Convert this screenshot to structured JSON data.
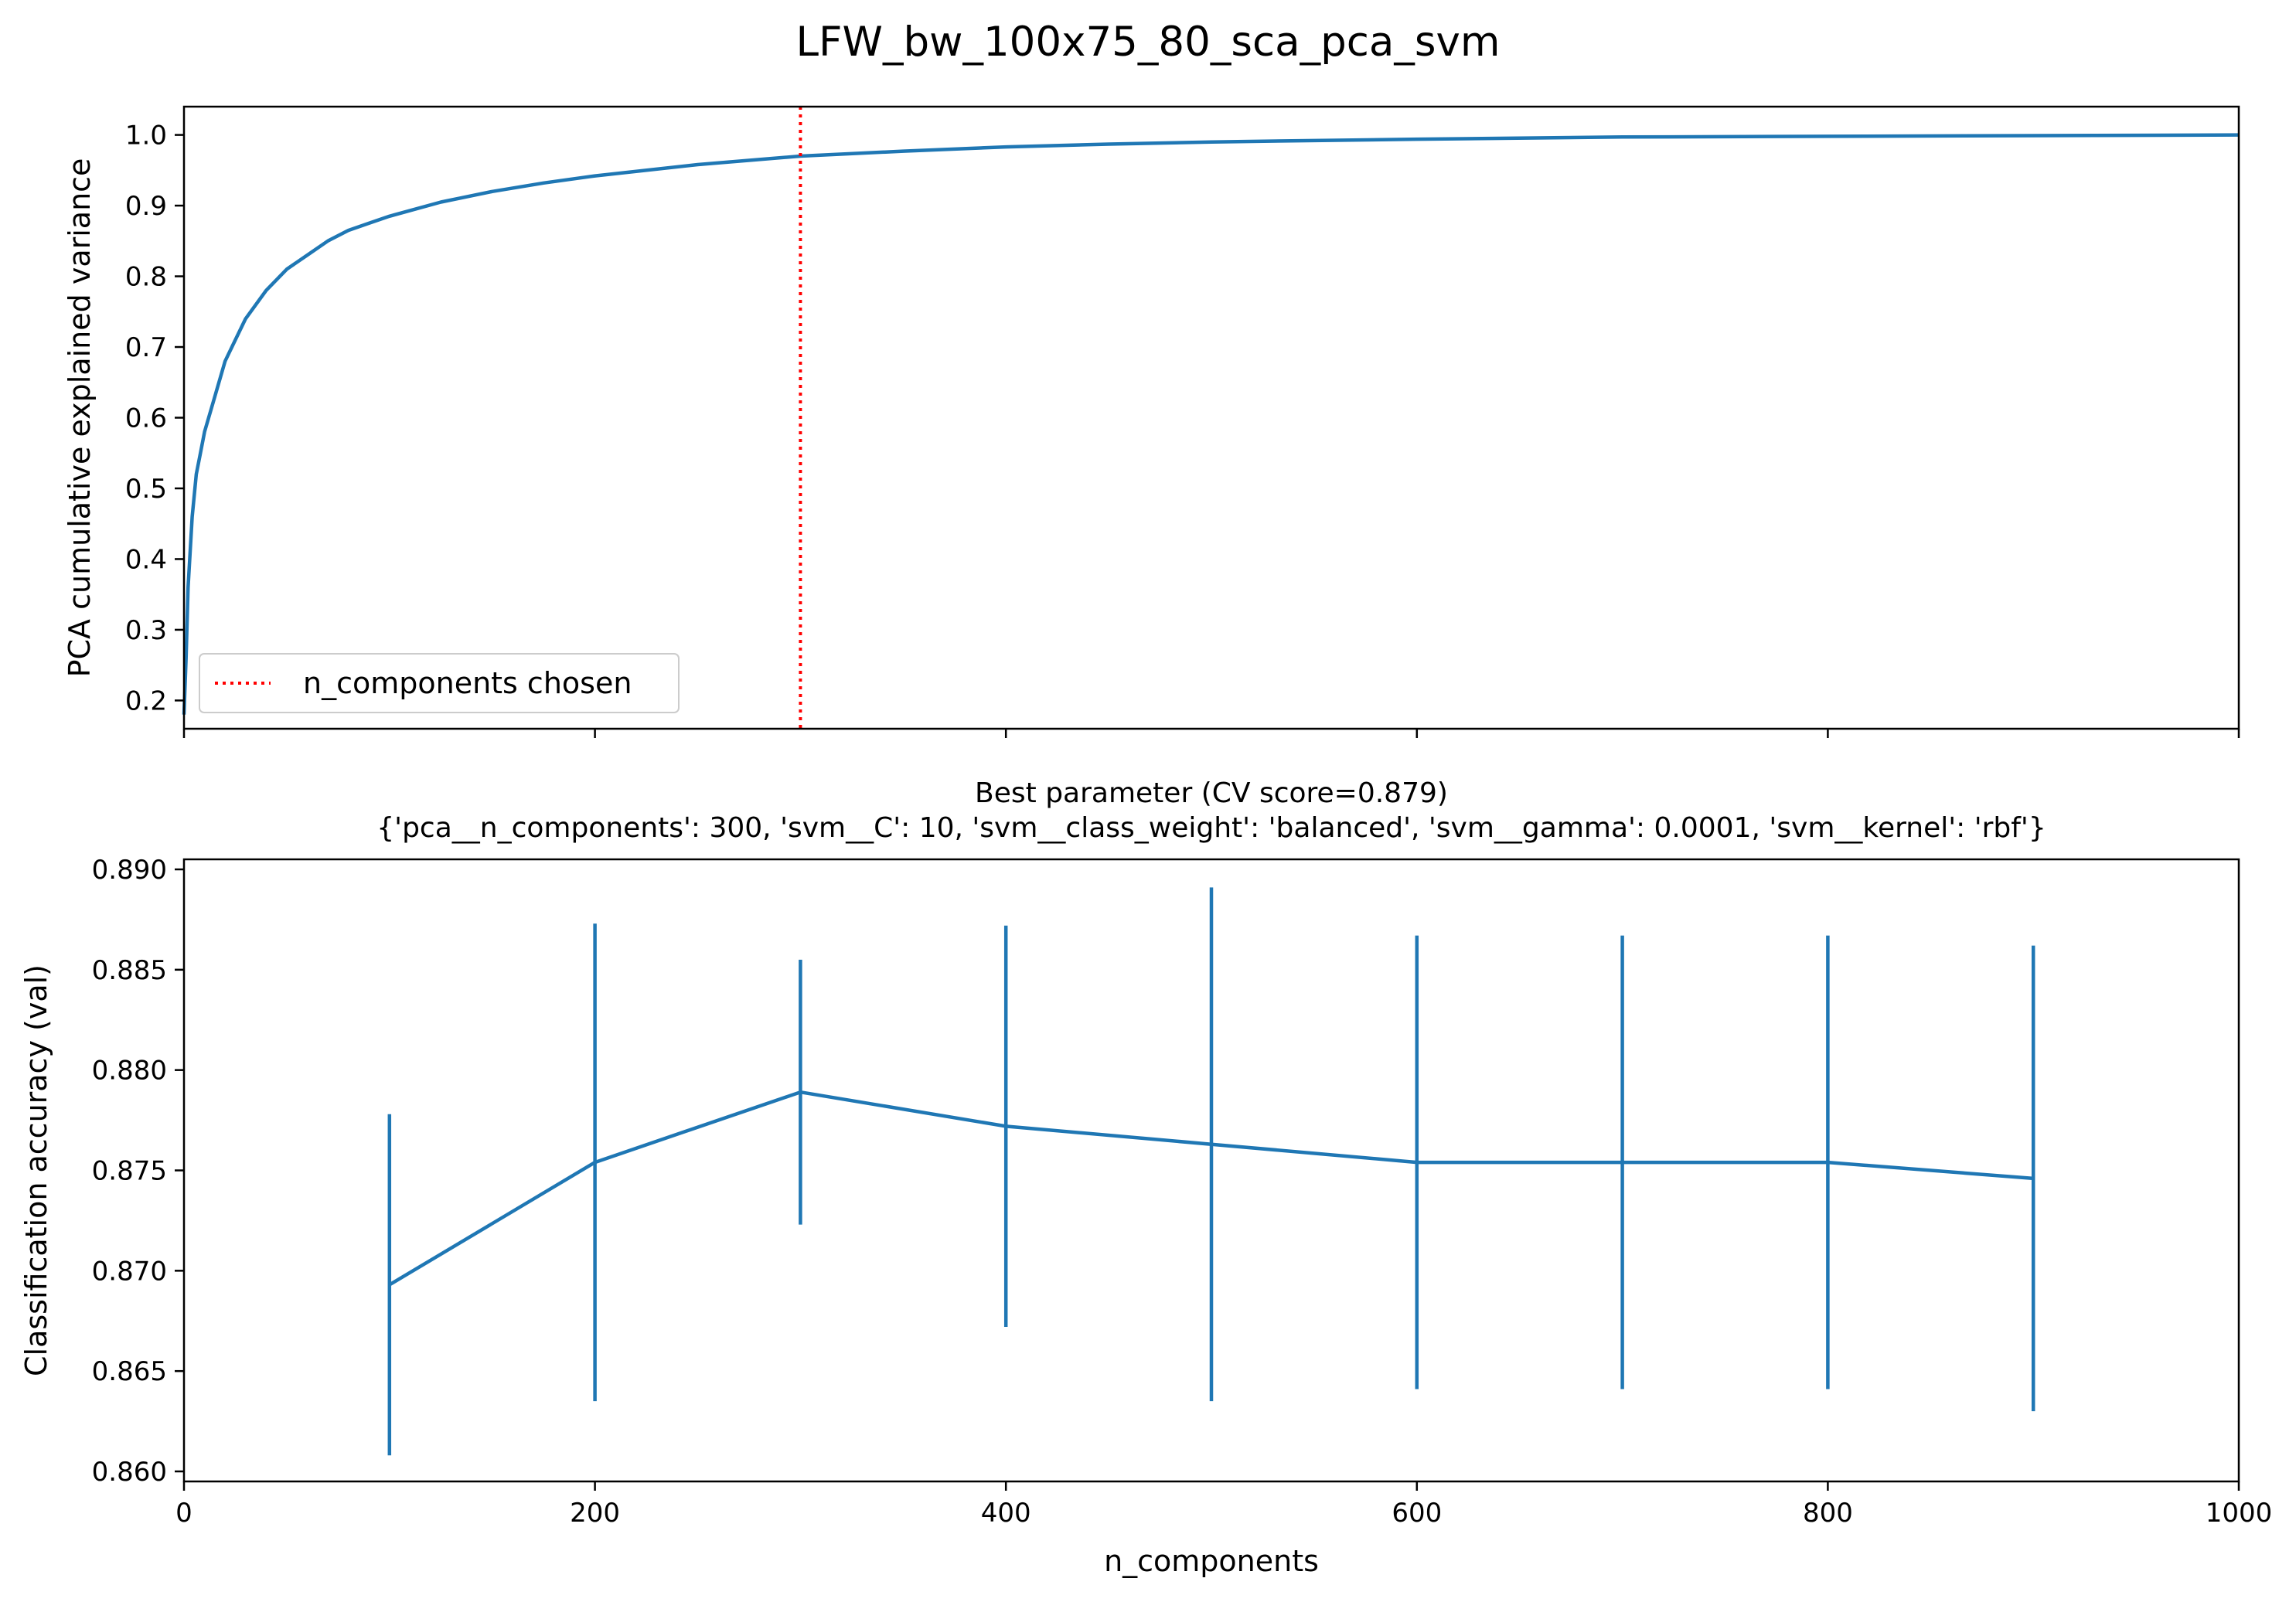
{
  "figure": {
    "title": "LFW_bw_100x75_80_sca_pca_svm"
  },
  "chart_data": [
    {
      "type": "line",
      "panel": "top",
      "title": "",
      "xlabel": "",
      "ylabel": "PCA cumulative explained variance",
      "xlim": [
        0,
        1000
      ],
      "ylim": [
        0.16,
        1.04
      ],
      "x_ticks": [
        0,
        200,
        400,
        600,
        800,
        1000
      ],
      "y_ticks": [
        0.2,
        0.3,
        0.4,
        0.5,
        0.6,
        0.7,
        0.8,
        0.9,
        1.0
      ],
      "y_tick_labels": [
        "0.2",
        "0.3",
        "0.4",
        "0.5",
        "0.6",
        "0.7",
        "0.8",
        "0.9",
        "1.0"
      ],
      "series": [
        {
          "color": "#1f77b4",
          "x": [
            0,
            1,
            2,
            4,
            6,
            8,
            10,
            15,
            20,
            25,
            30,
            40,
            50,
            60,
            70,
            80,
            90,
            100,
            125,
            150,
            175,
            200,
            250,
            300,
            350,
            400,
            450,
            500,
            600,
            700,
            800,
            900,
            1000
          ],
          "y": [
            0.18,
            0.26,
            0.36,
            0.46,
            0.52,
            0.55,
            0.58,
            0.63,
            0.68,
            0.71,
            0.74,
            0.78,
            0.81,
            0.83,
            0.85,
            0.865,
            0.875,
            0.885,
            0.905,
            0.92,
            0.932,
            0.942,
            0.958,
            0.97,
            0.977,
            0.983,
            0.987,
            0.99,
            0.994,
            0.997,
            0.998,
            0.999,
            1.0
          ]
        }
      ],
      "vline": {
        "x": 300,
        "color": "#ff0000",
        "style": "dotted",
        "label": "n_components chosen"
      },
      "legend": {
        "position": "lower-left",
        "entries": [
          "n_components chosen"
        ]
      }
    },
    {
      "type": "line",
      "panel": "bottom",
      "title": "Best parameter (CV score=0.879)",
      "subtitle": "{'pca__n_components': 300, 'svm__C': 10, 'svm__class_weight': 'balanced', 'svm__gamma': 0.0001, 'svm__kernel': 'rbf'}",
      "xlabel": "n_components",
      "ylabel": "Classification accuracy (val)",
      "xlim": [
        0,
        1000
      ],
      "ylim": [
        0.8595,
        0.8905
      ],
      "x_ticks": [
        0,
        200,
        400,
        600,
        800,
        1000
      ],
      "x_tick_labels": [
        "0",
        "200",
        "400",
        "600",
        "800",
        "1000"
      ],
      "y_ticks": [
        0.86,
        0.865,
        0.87,
        0.875,
        0.88,
        0.885,
        0.89
      ],
      "y_tick_labels": [
        "0.860",
        "0.865",
        "0.870",
        "0.875",
        "0.880",
        "0.885",
        "0.890"
      ],
      "series": [
        {
          "color": "#1f77b4",
          "x": [
            100,
            200,
            300,
            400,
            500,
            600,
            700,
            800,
            900
          ],
          "y": [
            0.8693,
            0.8754,
            0.8789,
            0.8772,
            0.8763,
            0.8754,
            0.8754,
            0.8754,
            0.8746
          ],
          "error": [
            0.0085,
            0.0119,
            0.0066,
            0.01,
            0.0128,
            0.0113,
            0.0113,
            0.0113,
            0.0116
          ]
        }
      ]
    }
  ]
}
